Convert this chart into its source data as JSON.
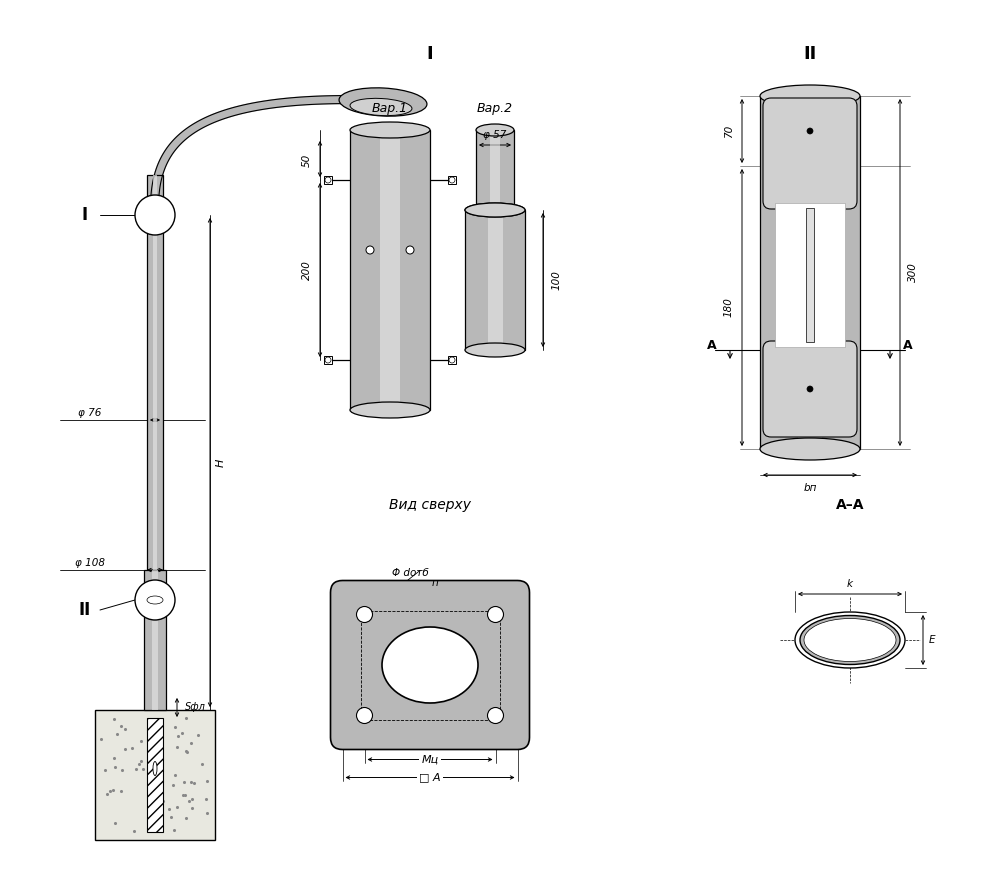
{
  "bg_color": "#ffffff",
  "lc": "#000000",
  "gray1": "#b8b8b8",
  "gray2": "#d0d0d0",
  "gray3": "#e0e0e0",
  "gray_dark": "#a0a0a0",
  "labels": {
    "I": "I",
    "II": "II",
    "var1": "Вар.1",
    "var2": "Вар.2",
    "vid": "Вид сверху",
    "AA": "А–А",
    "d50": "50",
    "d200": "200",
    "d100": "100",
    "d57": "φ 57",
    "d76": "φ 76",
    "d108": "φ 108",
    "d70": "70",
    "d180": "180",
    "d300": "300",
    "H": "H",
    "Sfl": "Sфл",
    "bn": "bп",
    "dotb": "Φ dотб",
    "n": "п",
    "Mu": "Мц",
    "sqA": "□ A",
    "k": "k",
    "E": "E",
    "lbl_I": "I",
    "lbl_II": "II",
    "lbl_A": "A"
  }
}
